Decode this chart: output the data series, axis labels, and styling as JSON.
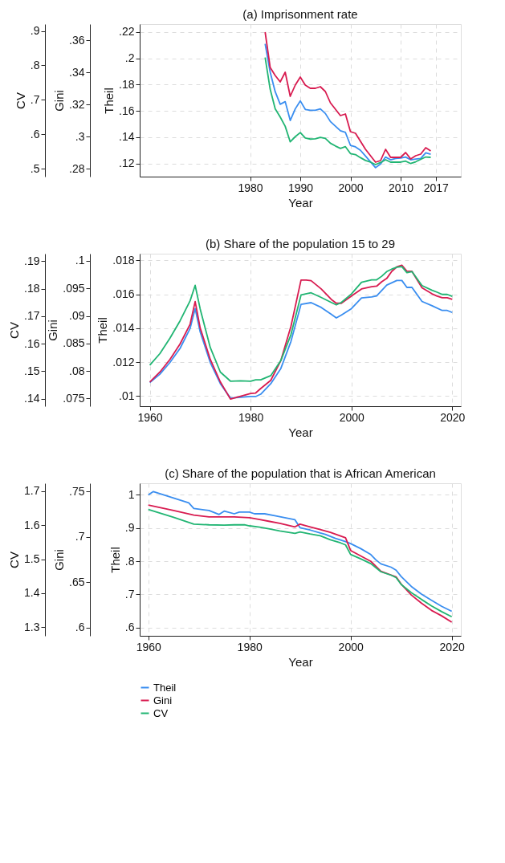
{
  "chart_data": [
    {
      "type": "line",
      "title": "(a) Imprisonment rate",
      "xlabel": "Year",
      "ylabel": "Theil",
      "y2label": "Gini",
      "y3label": "CV",
      "grid": true,
      "legend": false,
      "line_style": "solid",
      "marker": "none",
      "x": [
        1983,
        1984,
        1985,
        1986,
        1987,
        1988,
        1989,
        1990,
        1991,
        1992,
        1993,
        1994,
        1995,
        1996,
        1997,
        1998,
        1999,
        2000,
        2001,
        2002,
        2003,
        2004,
        2005,
        2006,
        2007,
        2008,
        2009,
        2010,
        2011,
        2012,
        2013,
        2014,
        2015,
        2016
      ],
      "xlim": [
        1958,
        2022
      ],
      "xticks": [
        1980,
        1990,
        2000,
        2010,
        2017
      ],
      "ylim": [
        0.11,
        0.226
      ],
      "yticks": [
        {
          "value": 0.12,
          "label": ".12"
        },
        {
          "value": 0.14,
          "label": ".14"
        },
        {
          "value": 0.16,
          "label": ".16"
        },
        {
          "value": 0.18,
          "label": ".18"
        },
        {
          "value": 0.2,
          "label": ".2"
        },
        {
          "value": 0.22,
          "label": ".22"
        }
      ],
      "y2lim": [
        0.275,
        0.37
      ],
      "y2ticks": [
        {
          "value": 0.28,
          "label": ".28"
        },
        {
          "value": 0.3,
          "label": ".3"
        },
        {
          "value": 0.32,
          "label": ".32"
        },
        {
          "value": 0.34,
          "label": ".34"
        },
        {
          "value": 0.36,
          "label": ".36"
        }
      ],
      "y3lim": [
        0.477,
        0.92
      ],
      "y3ticks": [
        {
          "value": 0.5,
          "label": ".5"
        },
        {
          "value": 0.6,
          "label": ".6"
        },
        {
          "value": 0.7,
          "label": ".7"
        },
        {
          "value": 0.8,
          "label": ".8"
        },
        {
          "value": 0.9,
          "label": ".9"
        }
      ],
      "series": [
        {
          "color": "#3a8ef0",
          "axis": "y",
          "values": [
            0.211,
            0.1895,
            0.1746,
            0.165,
            0.167,
            0.1527,
            0.1615,
            0.1676,
            0.1611,
            0.1604,
            0.1604,
            0.1615,
            0.158,
            0.1519,
            0.1484,
            0.1449,
            0.1436,
            0.1338,
            0.1326,
            0.13,
            0.1256,
            0.1212,
            0.1168,
            0.1196,
            0.1249,
            0.1228,
            0.1238,
            0.1242,
            0.1249,
            0.1228,
            0.1234,
            0.1238,
            0.1281,
            0.127
          ]
        },
        {
          "color": "#d81b50",
          "axis": "y2",
          "values": [
            0.365,
            0.343,
            0.338,
            0.334,
            0.34,
            0.325,
            0.332,
            0.337,
            0.332,
            0.33,
            0.33,
            0.331,
            0.328,
            0.321,
            0.317,
            0.313,
            0.314,
            0.303,
            0.302,
            0.297,
            0.292,
            0.288,
            0.284,
            0.285,
            0.292,
            0.287,
            0.287,
            0.287,
            0.29,
            0.286,
            0.288,
            0.289,
            0.293,
            0.291
          ]
        },
        {
          "color": "#21b573",
          "axis": "y3",
          "values": [
            0.823,
            0.731,
            0.674,
            0.65,
            0.623,
            0.578,
            0.593,
            0.605,
            0.589,
            0.586,
            0.587,
            0.591,
            0.588,
            0.574,
            0.566,
            0.559,
            0.564,
            0.544,
            0.541,
            0.532,
            0.524,
            0.519,
            0.512,
            0.518,
            0.526,
            0.519,
            0.519,
            0.519,
            0.522,
            0.515,
            0.52,
            0.527,
            0.534,
            0.533
          ]
        }
      ]
    },
    {
      "type": "line",
      "title": "(b) Share of the population 15 to 29",
      "xlabel": "Year",
      "ylabel": "Theil",
      "y2label": "Gini",
      "y3label": "CV",
      "grid": true,
      "legend": false,
      "line_style": "solid",
      "marker": "none",
      "xlim": [
        1958,
        2021.7
      ],
      "xticks": [
        1960,
        1980,
        2000,
        2020
      ],
      "ylim": [
        0.0094,
        0.0184
      ],
      "yticks": [
        {
          "value": 0.01,
          "label": ".01"
        },
        {
          "value": 0.012,
          "label": ".012"
        },
        {
          "value": 0.014,
          "label": ".014"
        },
        {
          "value": 0.016,
          "label": ".016"
        },
        {
          "value": 0.018,
          "label": ".018"
        }
      ],
      "y2lim": [
        0.0736,
        0.1013
      ],
      "y2ticks": [
        {
          "value": 0.075,
          "label": ".075"
        },
        {
          "value": 0.08,
          "label": ".08"
        },
        {
          "value": 0.085,
          "label": ".085"
        },
        {
          "value": 0.09,
          "label": ".09"
        },
        {
          "value": 0.095,
          "label": ".095"
        },
        {
          "value": 0.1,
          "label": ".1"
        }
      ],
      "y3lim": [
        0.1373,
        0.1927
      ],
      "y3ticks": [
        {
          "value": 0.14,
          "label": ".14"
        },
        {
          "value": 0.15,
          "label": ".15"
        },
        {
          "value": 0.16,
          "label": ".16"
        },
        {
          "value": 0.17,
          "label": ".17"
        },
        {
          "value": 0.18,
          "label": ".18"
        },
        {
          "value": 0.19,
          "label": ".19"
        }
      ],
      "series": [
        {
          "color": "#3a8ef0",
          "axis": "y",
          "x": [
            1960,
            1962,
            1964,
            1966,
            1968,
            1969,
            1970,
            1972,
            1974,
            1976,
            1978,
            1980,
            1981,
            1982,
            1984,
            1986,
            1988,
            1990,
            1992,
            1994,
            1996,
            1997,
            1998,
            2000,
            2002,
            2004,
            2005,
            2007,
            2009,
            2010,
            2011,
            2012,
            2014,
            2016,
            2018,
            2019,
            2020
          ],
          "values": [
            0.0108,
            0.01129,
            0.01198,
            0.01281,
            0.01399,
            0.01516,
            0.01378,
            0.01198,
            0.01073,
            0.00988,
            0.00993,
            0.00997,
            0.00997,
            0.01011,
            0.01073,
            0.01163,
            0.01322,
            0.01541,
            0.01551,
            0.01523,
            0.01482,
            0.01461,
            0.01478,
            0.01516,
            0.01579,
            0.01585,
            0.01591,
            0.01655,
            0.01682,
            0.01682,
            0.01641,
            0.01641,
            0.01558,
            0.01533,
            0.01505,
            0.01505,
            0.01493
          ]
        },
        {
          "color": "#d81b50",
          "axis": "y2",
          "x": [
            1960,
            1962,
            1964,
            1966,
            1968,
            1969,
            1970,
            1972,
            1974,
            1976,
            1978,
            1980,
            1981,
            1982,
            1984,
            1986,
            1988,
            1990,
            1991,
            1992,
            1994,
            1996,
            1997,
            1998,
            2000,
            2002,
            2004,
            2005,
            2006,
            2007,
            2008,
            2009,
            2010,
            2011,
            2012,
            2014,
            2016,
            2017,
            2018,
            2019,
            2020
          ],
          "values": [
            0.078,
            0.0798,
            0.0821,
            0.0849,
            0.0885,
            0.0926,
            0.0878,
            0.0821,
            0.078,
            0.0749,
            0.0754,
            0.0759,
            0.076,
            0.0768,
            0.0783,
            0.0819,
            0.0881,
            0.0965,
            0.0965,
            0.0964,
            0.0949,
            0.093,
            0.0923,
            0.0923,
            0.0936,
            0.0949,
            0.0953,
            0.0954,
            0.0962,
            0.0968,
            0.0981,
            0.0989,
            0.0992,
            0.0981,
            0.0981,
            0.0951,
            0.094,
            0.0936,
            0.0933,
            0.0933,
            0.093
          ]
        },
        {
          "color": "#21b573",
          "axis": "y3",
          "x": [
            1960,
            1962,
            1964,
            1966,
            1968,
            1969,
            1970,
            1972,
            1974,
            1976,
            1978,
            1980,
            1981,
            1982,
            1984,
            1986,
            1988,
            1990,
            1992,
            1994,
            1996,
            1997,
            1998,
            2000,
            2002,
            2004,
            2005,
            2006,
            2007,
            2008,
            2009,
            2010,
            2011,
            2012,
            2014,
            2016,
            2017,
            2018,
            2019,
            2020
          ],
          "values": [
            0.1522,
            0.1564,
            0.162,
            0.1683,
            0.1756,
            0.1812,
            0.1726,
            0.1586,
            0.1497,
            0.1464,
            0.1465,
            0.1464,
            0.1469,
            0.1469,
            0.1484,
            0.1539,
            0.1633,
            0.1777,
            0.1785,
            0.1768,
            0.175,
            0.1741,
            0.175,
            0.1781,
            0.1823,
            0.1832,
            0.1832,
            0.1845,
            0.1862,
            0.1871,
            0.1878,
            0.188,
            0.1858,
            0.1862,
            0.1811,
            0.1794,
            0.1787,
            0.1779,
            0.1779,
            0.1772
          ]
        }
      ]
    },
    {
      "type": "line",
      "title": "(c) Share of the population that is African American",
      "xlabel": "Year",
      "ylabel": "Theil",
      "y2label": "Gini",
      "y3label": "CV",
      "grid": true,
      "legend": "bottom",
      "line_style": "solid",
      "marker": "none",
      "xlim": [
        1958.3,
        2021.8
      ],
      "xticks": [
        1960,
        1980,
        2000,
        2020
      ],
      "ylim": [
        0.575,
        1.035
      ],
      "yticks": [
        {
          "value": 0.6,
          "label": ".6"
        },
        {
          "value": 0.7,
          "label": ".7"
        },
        {
          "value": 0.8,
          "label": ".8"
        },
        {
          "value": 0.9,
          "label": ".9"
        },
        1
      ],
      "y2lim": [
        0.591,
        0.759
      ],
      "y2ticks": [
        {
          "value": 0.6,
          "label": ".6"
        },
        {
          "value": 0.65,
          "label": ".65"
        },
        {
          "value": 0.7,
          "label": ".7"
        },
        {
          "value": 0.75,
          "label": ".75"
        }
      ],
      "y3lim": [
        1.275,
        1.723
      ],
      "y3ticks": [
        {
          "value": 1.3,
          "label": "1.3"
        },
        {
          "value": 1.4,
          "label": "1.4"
        },
        {
          "value": 1.5,
          "label": "1.5"
        },
        {
          "value": 1.6,
          "label": "1.6"
        },
        {
          "value": 1.7,
          "label": "1.7"
        }
      ],
      "series": [
        {
          "name": "Theil",
          "color": "#3a8ef0",
          "axis": "y",
          "x": [
            1960,
            1961,
            1968,
            1969,
            1972,
            1974,
            1975,
            1977,
            1978,
            1980,
            1981,
            1983,
            1985,
            1987,
            1989,
            1990,
            1992,
            1994,
            1995,
            1997,
            1999,
            2000,
            2002,
            2004,
            2005,
            2006,
            2008,
            2009,
            2010,
            2012,
            2014,
            2016,
            2018,
            2020
          ],
          "values": [
            1.0,
            1.01,
            0.976,
            0.959,
            0.953,
            0.941,
            0.951,
            0.943,
            0.948,
            0.948,
            0.943,
            0.943,
            0.937,
            0.931,
            0.925,
            0.901,
            0.894,
            0.885,
            0.881,
            0.869,
            0.859,
            0.853,
            0.838,
            0.82,
            0.804,
            0.792,
            0.782,
            0.773,
            0.754,
            0.724,
            0.701,
            0.682,
            0.664,
            0.649
          ]
        },
        {
          "name": "Gini",
          "color": "#d81b50",
          "axis": "y2",
          "x": [
            1960,
            1965,
            1969,
            1972,
            1975,
            1977,
            1980,
            1982,
            1984,
            1986,
            1989,
            1990,
            1992,
            1994,
            1996,
            1998,
            1999,
            2000,
            2002,
            2004,
            2006,
            2008,
            2009,
            2010,
            2012,
            2014,
            2016,
            2018,
            2020
          ],
          "values": [
            0.735,
            0.729,
            0.724,
            0.722,
            0.722,
            0.722,
            0.721,
            0.719,
            0.717,
            0.715,
            0.711,
            0.714,
            0.711,
            0.708,
            0.705,
            0.701,
            0.699,
            0.685,
            0.679,
            0.673,
            0.662,
            0.658,
            0.656,
            0.648,
            0.636,
            0.627,
            0.619,
            0.613,
            0.606
          ]
        },
        {
          "name": "CV",
          "color": "#21b573",
          "axis": "y3",
          "x": [
            1960,
            1965,
            1969,
            1972,
            1975,
            1977,
            1979,
            1980,
            1982,
            1984,
            1986,
            1989,
            1990,
            1992,
            1994,
            1996,
            1998,
            1999,
            2000,
            2002,
            2004,
            2006,
            2008,
            2009,
            2010,
            2012,
            2014,
            2016,
            2018,
            2020
          ],
          "values": [
            1.646,
            1.623,
            1.603,
            1.601,
            1.6,
            1.601,
            1.601,
            1.598,
            1.594,
            1.589,
            1.583,
            1.576,
            1.58,
            1.574,
            1.569,
            1.557,
            1.548,
            1.542,
            1.514,
            1.501,
            1.487,
            1.463,
            1.453,
            1.446,
            1.426,
            1.402,
            1.382,
            1.363,
            1.346,
            1.331
          ]
        }
      ]
    }
  ]
}
